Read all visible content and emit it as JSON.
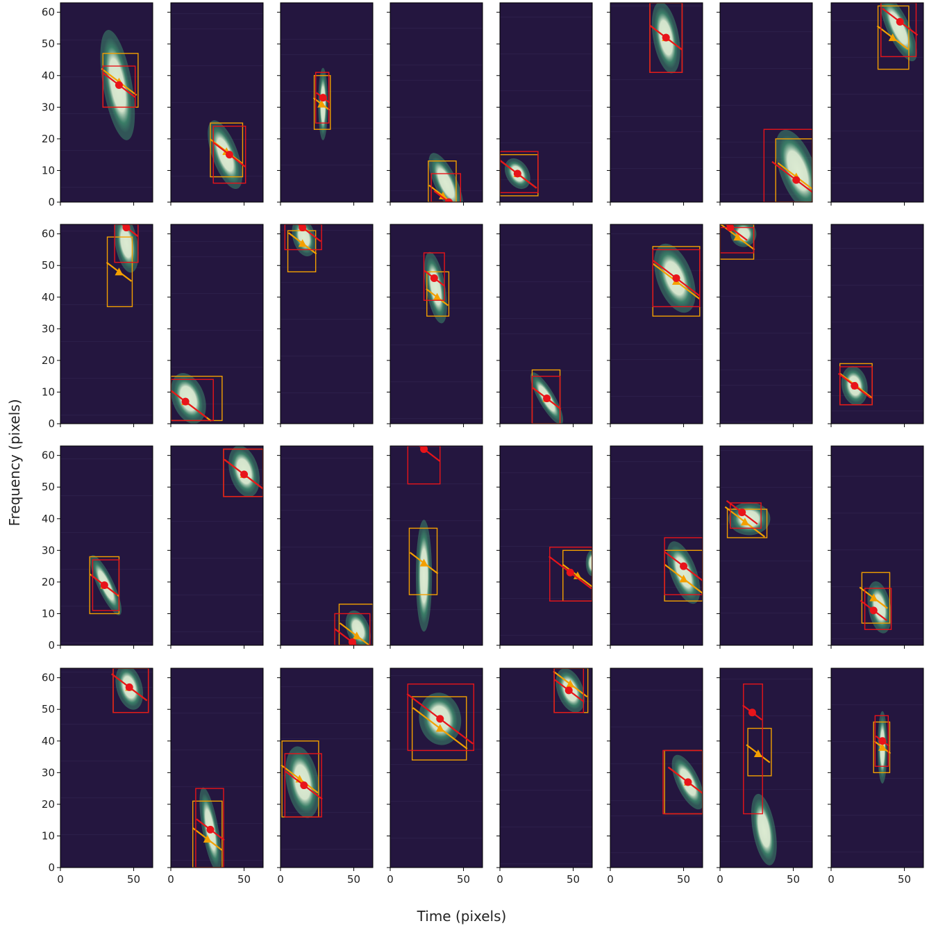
{
  "figure": {
    "xlabel": "Time (pixels)",
    "ylabel": "Frequency (pixels)"
  },
  "chart_data": {
    "type": "scatter",
    "grid": false,
    "layout_desc": "4 rows x 8 columns of spectrogram-cutout panels, shared axes",
    "xlim": [
      0,
      63
    ],
    "ylim": [
      0,
      63
    ],
    "x_ticks": [
      "0",
      "50"
    ],
    "y_ticks": [
      "0",
      "10",
      "20",
      "30",
      "40",
      "50",
      "60"
    ],
    "colors": {
      "background": "#24163f",
      "blob_core": "#dcebd2",
      "blob_glow": "#3d8a6c",
      "red_box": "#e8141a",
      "orange_box": "#f4a000"
    },
    "panels": [
      {
        "cx": 39,
        "cy": 37,
        "w": 18,
        "h": 34,
        "ang": 10,
        "red": {
          "x0": 29,
          "x1": 51,
          "y0": 30,
          "y1": 43,
          "mx": 40,
          "my": 37
        },
        "orange": {
          "x0": 29,
          "x1": 53,
          "y0": 30,
          "y1": 47,
          "mx": 40,
          "my": 38
        }
      },
      {
        "cx": 37,
        "cy": 15,
        "w": 16,
        "h": 22,
        "ang": 20,
        "red": {
          "x0": 29,
          "x1": 51,
          "y0": 6,
          "y1": 24,
          "mx": 40,
          "my": 15
        },
        "orange": {
          "x0": 27,
          "x1": 49,
          "y0": 8,
          "y1": 25,
          "mx": 38,
          "my": 16
        }
      },
      {
        "cx": 29,
        "cy": 31,
        "w": 6,
        "h": 22,
        "ang": 0,
        "red": {
          "x0": 24,
          "x1": 33,
          "y0": 25,
          "y1": 41,
          "mx": 29,
          "my": 33
        },
        "orange": {
          "x0": 23,
          "x1": 34,
          "y0": 23,
          "y1": 40,
          "mx": 28,
          "my": 31
        }
      },
      {
        "cx": 38,
        "cy": 6,
        "w": 14,
        "h": 20,
        "ang": 25,
        "red": {
          "x0": 28,
          "x1": 48,
          "y0": 0,
          "y1": 9,
          "mx": 40,
          "my": 0
        },
        "orange": {
          "x0": 26,
          "x1": 45,
          "y0": 0,
          "y1": 13,
          "mx": 36,
          "my": 2
        }
      },
      {
        "cx": 12,
        "cy": 9,
        "w": 14,
        "h": 10,
        "ang": 30,
        "red": {
          "x0": 0,
          "x1": 26,
          "y0": 3,
          "y1": 16,
          "mx": 12,
          "my": 9
        },
        "orange": {
          "x0": 0,
          "x1": 26,
          "y0": 2,
          "y1": 15,
          "mx": 12,
          "my": 9
        }
      },
      {
        "cx": 38,
        "cy": 52,
        "w": 16,
        "h": 22,
        "ang": 10,
        "red": {
          "x0": 27,
          "x1": 49,
          "y0": 41,
          "y1": 63,
          "mx": 38,
          "my": 52
        },
        "orange": {
          "x0": 27,
          "x1": 49,
          "y0": 41,
          "y1": 63,
          "mx": 38,
          "my": 52
        }
      },
      {
        "cx": 53,
        "cy": 10,
        "w": 22,
        "h": 26,
        "ang": 20,
        "red": {
          "x0": 30,
          "x1": 63,
          "y0": 0,
          "y1": 23,
          "mx": 52,
          "my": 7
        },
        "orange": {
          "x0": 38,
          "x1": 63,
          "y0": 0,
          "y1": 20,
          "mx": 52,
          "my": 8
        }
      },
      {
        "cx": 46,
        "cy": 55,
        "w": 14,
        "h": 22,
        "ang": 25,
        "red": {
          "x0": 34,
          "x1": 58,
          "y0": 46,
          "y1": 63,
          "mx": 47,
          "my": 57
        },
        "orange": {
          "x0": 32,
          "x1": 53,
          "y0": 42,
          "y1": 62,
          "mx": 42,
          "my": 52
        }
      },
      {
        "cx": 45,
        "cy": 57,
        "w": 14,
        "h": 18,
        "ang": 10,
        "red": {
          "x0": 37,
          "x1": 53,
          "y0": 51,
          "y1": 63,
          "mx": 45,
          "my": 62
        },
        "orange": {
          "x0": 32,
          "x1": 49,
          "y0": 37,
          "y1": 59,
          "mx": 40,
          "my": 48
        }
      },
      {
        "cx": 12,
        "cy": 8,
        "w": 20,
        "h": 16,
        "ang": 20,
        "red": {
          "x0": 0,
          "x1": 29,
          "y0": 1,
          "y1": 14,
          "mx": 10,
          "my": 7
        },
        "orange": {
          "x0": 0,
          "x1": 35,
          "y0": 1,
          "y1": 15,
          "mx": 10,
          "my": 7
        }
      },
      {
        "cx": 16,
        "cy": 59,
        "w": 14,
        "h": 12,
        "ang": 15,
        "red": {
          "x0": 3,
          "x1": 28,
          "y0": 55,
          "y1": 63,
          "mx": 15,
          "my": 62
        },
        "orange": {
          "x0": 5,
          "x1": 24,
          "y0": 48,
          "y1": 61,
          "mx": 15,
          "my": 57
        }
      },
      {
        "cx": 31,
        "cy": 43,
        "w": 12,
        "h": 22,
        "ang": 10,
        "red": {
          "x0": 23,
          "x1": 37,
          "y0": 39,
          "y1": 54,
          "mx": 30,
          "my": 46
        },
        "orange": {
          "x0": 25,
          "x1": 40,
          "y0": 34,
          "y1": 48,
          "mx": 32,
          "my": 40
        }
      },
      {
        "cx": 32,
        "cy": 8,
        "w": 10,
        "h": 18,
        "ang": 30,
        "red": {
          "x0": 22,
          "x1": 41,
          "y0": 0,
          "y1": 15,
          "mx": 32,
          "my": 8
        },
        "orange": {
          "x0": 22,
          "x1": 41,
          "y0": 0,
          "y1": 17,
          "mx": 32,
          "my": 8
        }
      },
      {
        "cx": 44,
        "cy": 46,
        "w": 22,
        "h": 22,
        "ang": 20,
        "red": {
          "x0": 29,
          "x1": 61,
          "y0": 37,
          "y1": 55,
          "mx": 45,
          "my": 46
        },
        "orange": {
          "x0": 29,
          "x1": 61,
          "y0": 34,
          "y1": 56,
          "mx": 45,
          "my": 45
        }
      },
      {
        "cx": 16,
        "cy": 60,
        "w": 16,
        "h": 8,
        "ang": 10,
        "red": {
          "x0": 0,
          "x1": 23,
          "y0": 54,
          "y1": 62,
          "mx": 7,
          "my": 62
        },
        "orange": {
          "x0": 0,
          "x1": 23,
          "y0": 52,
          "y1": 63,
          "mx": 12,
          "my": 59
        }
      },
      {
        "cx": 16,
        "cy": 12,
        "w": 16,
        "h": 12,
        "ang": 10,
        "red": {
          "x0": 6,
          "x1": 28,
          "y0": 6,
          "y1": 18,
          "mx": 16,
          "my": 12
        },
        "orange": {
          "x0": 6,
          "x1": 28,
          "y0": 6,
          "y1": 19,
          "mx": 17,
          "my": 12
        }
      },
      {
        "cx": 31,
        "cy": 19,
        "w": 10,
        "h": 20,
        "ang": 25,
        "red": {
          "x0": 22,
          "x1": 40,
          "y0": 11,
          "y1": 27,
          "mx": 30,
          "my": 19
        },
        "orange": {
          "x0": 20,
          "x1": 40,
          "y0": 10,
          "y1": 28,
          "mx": 30,
          "my": 19
        }
      },
      {
        "cx": 50,
        "cy": 55,
        "w": 18,
        "h": 16,
        "ang": 15,
        "red": {
          "x0": 36,
          "x1": 63,
          "y0": 47,
          "y1": 62,
          "mx": 50,
          "my": 54
        },
        "orange": {
          "x0": 36,
          "x1": 63,
          "y0": 47,
          "y1": 62,
          "mx": 50,
          "my": 54
        }
      },
      {
        "cx": 53,
        "cy": 5,
        "w": 14,
        "h": 12,
        "ang": 20,
        "red": {
          "x0": 37,
          "x1": 61,
          "y0": 0,
          "y1": 10,
          "mx": 49,
          "my": 1
        },
        "orange": {
          "x0": 40,
          "x1": 63,
          "y0": 0,
          "y1": 13,
          "mx": 52,
          "my": 3
        }
      },
      {
        "cx": 23,
        "cy": 22,
        "w": 10,
        "h": 34,
        "ang": 0,
        "red": {
          "x0": 12,
          "x1": 34,
          "y0": 51,
          "y1": 63,
          "mx": 23,
          "my": 62
        },
        "orange": {
          "x0": 13,
          "x1": 32,
          "y0": 16,
          "y1": 37,
          "mx": 23,
          "my": 26
        }
      },
      {
        "cx": 63,
        "cy": 26,
        "w": 8,
        "h": 8,
        "ang": 0,
        "red": {
          "x0": 34,
          "x1": 63,
          "y0": 14,
          "y1": 31,
          "mx": 48,
          "my": 23
        },
        "orange": {
          "x0": 43,
          "x1": 63,
          "y0": 14,
          "y1": 30,
          "mx": 53,
          "my": 22
        }
      },
      {
        "cx": 50,
        "cy": 23,
        "w": 16,
        "h": 20,
        "ang": 20,
        "red": {
          "x0": 37,
          "x1": 63,
          "y0": 16,
          "y1": 34,
          "mx": 50,
          "my": 25
        },
        "orange": {
          "x0": 37,
          "x1": 63,
          "y0": 14,
          "y1": 30,
          "mx": 50,
          "my": 21
        }
      },
      {
        "cx": 20,
        "cy": 40,
        "w": 26,
        "h": 10,
        "ang": 0,
        "red": {
          "x0": 7,
          "x1": 28,
          "y0": 37,
          "y1": 45,
          "mx": 15,
          "my": 42
        },
        "orange": {
          "x0": 5,
          "x1": 32,
          "y0": 34,
          "y1": 43,
          "mx": 17,
          "my": 39
        }
      },
      {
        "cx": 33,
        "cy": 12,
        "w": 14,
        "h": 16,
        "ang": 10,
        "red": {
          "x0": 23,
          "x1": 41,
          "y0": 5,
          "y1": 18,
          "mx": 29,
          "my": 11
        },
        "orange": {
          "x0": 21,
          "x1": 40,
          "y0": 7,
          "y1": 23,
          "mx": 29,
          "my": 15
        }
      },
      {
        "cx": 47,
        "cy": 57,
        "w": 16,
        "h": 14,
        "ang": 15,
        "red": {
          "x0": 36,
          "x1": 60,
          "y0": 49,
          "y1": 63,
          "mx": 47,
          "my": 57
        },
        "orange": {
          "x0": 36,
          "x1": 60,
          "y0": 49,
          "y1": 63,
          "mx": 47,
          "my": 57
        }
      },
      {
        "cx": 27,
        "cy": 12,
        "w": 10,
        "h": 26,
        "ang": 10,
        "red": {
          "x0": 17,
          "x1": 36,
          "y0": 0,
          "y1": 25,
          "mx": 27,
          "my": 12
        },
        "orange": {
          "x0": 15,
          "x1": 35,
          "y0": 0,
          "y1": 21,
          "mx": 25,
          "my": 9
        }
      },
      {
        "cx": 15,
        "cy": 27,
        "w": 20,
        "h": 22,
        "ang": 10,
        "red": {
          "x0": 3,
          "x1": 28,
          "y0": 16,
          "y1": 36,
          "mx": 16,
          "my": 26
        },
        "orange": {
          "x0": 1,
          "x1": 26,
          "y0": 16,
          "y1": 40,
          "mx": 13,
          "my": 28
        }
      },
      {
        "cx": 34,
        "cy": 47,
        "w": 26,
        "h": 16,
        "ang": 10,
        "red": {
          "x0": 12,
          "x1": 57,
          "y0": 37,
          "y1": 58,
          "mx": 34,
          "my": 47
        },
        "orange": {
          "x0": 15,
          "x1": 52,
          "y0": 34,
          "y1": 54,
          "mx": 34,
          "my": 44
        }
      },
      {
        "cx": 48,
        "cy": 56,
        "w": 16,
        "h": 14,
        "ang": 20,
        "red": {
          "x0": 37,
          "x1": 57,
          "y0": 49,
          "y1": 63,
          "mx": 47,
          "my": 56
        },
        "orange": {
          "x0": 37,
          "x1": 60,
          "y0": 49,
          "y1": 63,
          "mx": 48,
          "my": 58
        }
      },
      {
        "cx": 53,
        "cy": 27,
        "w": 14,
        "h": 18,
        "ang": 25,
        "red": {
          "x0": 36,
          "x1": 63,
          "y0": 17,
          "y1": 37,
          "mx": 53,
          "my": 27
        },
        "orange": {
          "x0": 37,
          "x1": 63,
          "y0": 17,
          "y1": 37,
          "mx": 53,
          "my": 27
        }
      },
      {
        "cx": 30,
        "cy": 12,
        "w": 14,
        "h": 22,
        "ang": 10,
        "red": {
          "x0": 16,
          "x1": 29,
          "y0": 17,
          "y1": 58,
          "mx": 22,
          "my": 49
        },
        "orange": {
          "x0": 19,
          "x1": 35,
          "y0": 29,
          "y1": 44,
          "mx": 26,
          "my": 36
        }
      },
      {
        "cx": 35,
        "cy": 38,
        "w": 6,
        "h": 22,
        "ang": 0,
        "red": {
          "x0": 30,
          "x1": 39,
          "y0": 32,
          "y1": 48,
          "mx": 35,
          "my": 40
        },
        "orange": {
          "x0": 29,
          "x1": 40,
          "y0": 30,
          "y1": 46,
          "mx": 35,
          "my": 38
        }
      }
    ]
  }
}
